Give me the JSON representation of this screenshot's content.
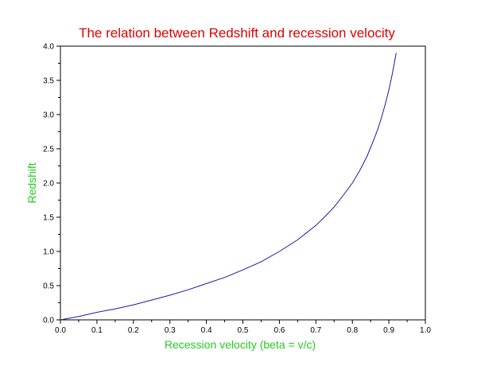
{
  "chart_data": {
    "type": "line",
    "title": "The relation between Redshift and recession velocity",
    "xlabel": "Recession velocity (beta = v/c)",
    "ylabel": "Redshift",
    "xlim": [
      0.0,
      1.0
    ],
    "ylim": [
      0.0,
      4.0
    ],
    "x_ticks": [
      "0.0",
      "0.1",
      "0.2",
      "0.3",
      "0.4",
      "0.5",
      "0.6",
      "0.7",
      "0.8",
      "0.9",
      "1.0"
    ],
    "y_ticks": [
      "0.0",
      "0.5",
      "1.0",
      "1.5",
      "2.0",
      "2.5",
      "3.0",
      "3.5",
      "4.0"
    ],
    "grid": false,
    "colors": {
      "title": "#e00000",
      "labels": "#22cc22",
      "line": "#1a1aa0",
      "axes": "#000000"
    },
    "series": [
      {
        "x": [
          0.0,
          0.05,
          0.1,
          0.15,
          0.2,
          0.25,
          0.3,
          0.35,
          0.4,
          0.45,
          0.5,
          0.55,
          0.6,
          0.65,
          0.7,
          0.725,
          0.75,
          0.775,
          0.8,
          0.82,
          0.84,
          0.86,
          0.87,
          0.88,
          0.89,
          0.9,
          0.91,
          0.92
        ],
        "y": [
          0.0,
          0.05,
          0.11,
          0.16,
          0.22,
          0.29,
          0.36,
          0.44,
          0.53,
          0.62,
          0.73,
          0.85,
          1.0,
          1.17,
          1.38,
          1.51,
          1.65,
          1.82,
          2.0,
          2.18,
          2.39,
          2.65,
          2.79,
          2.96,
          3.15,
          3.36,
          3.61,
          3.9
        ]
      }
    ]
  }
}
